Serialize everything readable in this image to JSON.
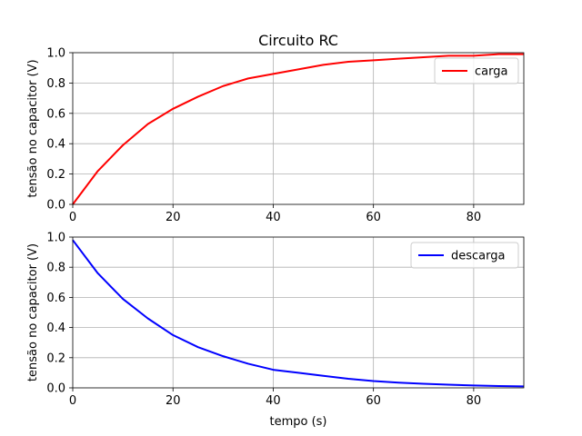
{
  "chart_data": [
    {
      "type": "line",
      "title": "Circuito RC",
      "xlabel": "",
      "ylabel": "tensão no capacitor (V)",
      "xlim": [
        0,
        90
      ],
      "ylim": [
        0,
        1.0
      ],
      "xticks": [
        0,
        20,
        40,
        60,
        80
      ],
      "xtick_labels": [
        "0",
        "20",
        "40",
        "60",
        "80"
      ],
      "yticks": [
        0.0,
        0.2,
        0.4,
        0.6,
        0.8,
        1.0
      ],
      "ytick_labels": [
        "0.0",
        "0.2",
        "0.4",
        "0.6",
        "0.8",
        "1.0"
      ],
      "grid": true,
      "legend_position": "top-right",
      "series": [
        {
          "name": "carga",
          "color": "#ff0000",
          "x": [
            0,
            5,
            10,
            15,
            20,
            25,
            30,
            35,
            40,
            45,
            50,
            55,
            60,
            65,
            70,
            75,
            80,
            85,
            90
          ],
          "y": [
            0.0,
            0.22,
            0.39,
            0.53,
            0.63,
            0.71,
            0.78,
            0.83,
            0.86,
            0.89,
            0.92,
            0.94,
            0.95,
            0.96,
            0.97,
            0.98,
            0.98,
            0.99,
            0.99
          ]
        }
      ]
    },
    {
      "type": "line",
      "title": "",
      "xlabel": "tempo (s)",
      "ylabel": "tensão no capacitor (V)",
      "xlim": [
        0,
        90
      ],
      "ylim": [
        0,
        1.0
      ],
      "xticks": [
        0,
        20,
        40,
        60,
        80
      ],
      "xtick_labels": [
        "0",
        "20",
        "40",
        "60",
        "80"
      ],
      "yticks": [
        0.0,
        0.2,
        0.4,
        0.6,
        0.8,
        1.0
      ],
      "ytick_labels": [
        "0.0",
        "0.2",
        "0.4",
        "0.6",
        "0.8",
        "1.0"
      ],
      "grid": true,
      "legend_position": "top-right",
      "series": [
        {
          "name": "descarga",
          "color": "#0000ff",
          "x": [
            0,
            5,
            10,
            15,
            20,
            25,
            30,
            35,
            40,
            45,
            50,
            55,
            60,
            65,
            70,
            75,
            80,
            85,
            90
          ],
          "y": [
            0.98,
            0.76,
            0.59,
            0.46,
            0.35,
            0.27,
            0.21,
            0.16,
            0.12,
            0.1,
            0.08,
            0.06,
            0.045,
            0.035,
            0.027,
            0.021,
            0.016,
            0.012,
            0.01
          ]
        }
      ]
    }
  ]
}
